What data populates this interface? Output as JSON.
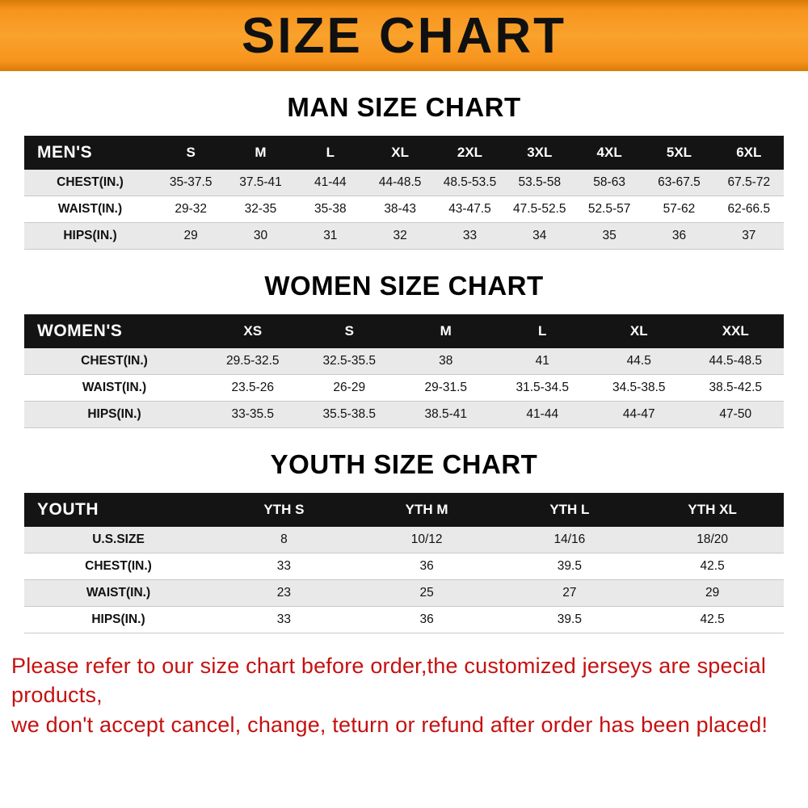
{
  "banner": {
    "title": "SIZE CHART"
  },
  "colors": {
    "banner_orange": "#f7941d",
    "table_header_black": "#141414",
    "row_gray": "#e9e9e9",
    "note_red": "#c51111"
  },
  "chart_data": [
    {
      "type": "table",
      "title": "MAN SIZE CHART",
      "columns": [
        "MEN'S",
        "S",
        "M",
        "L",
        "XL",
        "2XL",
        "3XL",
        "4XL",
        "5XL",
        "6XL"
      ],
      "rows": [
        [
          "CHEST(IN.)",
          "35-37.5",
          "37.5-41",
          "41-44",
          "44-48.5",
          "48.5-53.5",
          "53.5-58",
          "58-63",
          "63-67.5",
          "67.5-72"
        ],
        [
          "WAIST(IN.)",
          "29-32",
          "32-35",
          "35-38",
          "38-43",
          "43-47.5",
          "47.5-52.5",
          "52.5-57",
          "57-62",
          "62-66.5"
        ],
        [
          "HIPS(IN.)",
          "29",
          "30",
          "31",
          "32",
          "33",
          "34",
          "35",
          "36",
          "37"
        ]
      ]
    },
    {
      "type": "table",
      "title": "WOMEN SIZE CHART",
      "columns": [
        "WOMEN'S",
        "XS",
        "S",
        "M",
        "L",
        "XL",
        "XXL"
      ],
      "rows": [
        [
          "CHEST(IN.)",
          "29.5-32.5",
          "32.5-35.5",
          "38",
          "41",
          "44.5",
          "44.5-48.5"
        ],
        [
          "WAIST(IN.)",
          "23.5-26",
          "26-29",
          "29-31.5",
          "31.5-34.5",
          "34.5-38.5",
          "38.5-42.5"
        ],
        [
          "HIPS(IN.)",
          "33-35.5",
          "35.5-38.5",
          "38.5-41",
          "41-44",
          "44-47",
          "47-50"
        ]
      ]
    },
    {
      "type": "table",
      "title": "YOUTH SIZE CHART",
      "columns": [
        "YOUTH",
        "YTH S",
        "YTH M",
        "YTH L",
        "YTH XL"
      ],
      "rows": [
        [
          "U.S.SIZE",
          "8",
          "10/12",
          "14/16",
          "18/20"
        ],
        [
          "CHEST(IN.)",
          "33",
          "36",
          "39.5",
          "42.5"
        ],
        [
          "WAIST(IN.)",
          "23",
          "25",
          "27",
          "29"
        ],
        [
          "HIPS(IN.)",
          "33",
          "36",
          "39.5",
          "42.5"
        ]
      ]
    }
  ],
  "footer": {
    "lines": [
      "Please refer to our size chart before order,the customized jerseys are special products,",
      "we don't accept cancel, change, teturn or refund after order has been placed!"
    ]
  }
}
